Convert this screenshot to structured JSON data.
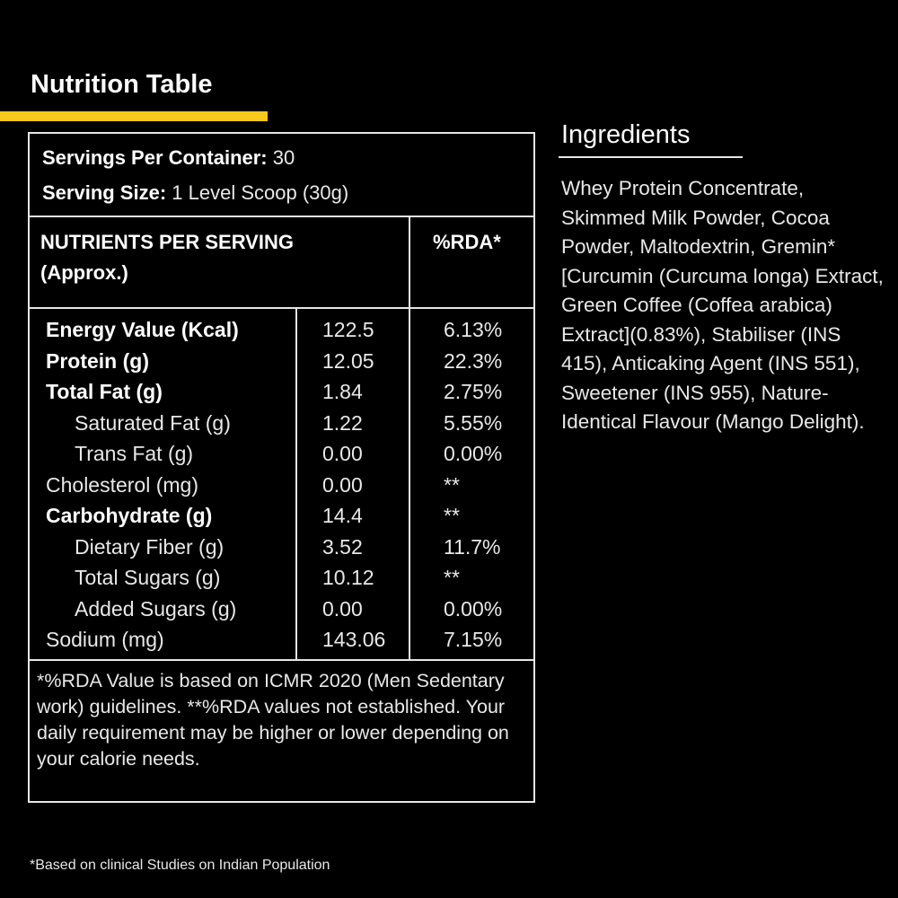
{
  "heading": "Nutrition Table",
  "colors": {
    "accent": "#f6c91c",
    "background": "#000000",
    "text": "#e8e8e8"
  },
  "servings": {
    "per_container_label": "Servings Per Container:",
    "per_container_value": "30",
    "size_label": "Serving Size:",
    "size_value": "1 Level Scoop (30g)"
  },
  "table": {
    "nutrients_header": "NUTRIENTS PER SERVING",
    "nutrients_subheader": "(Approx.)",
    "rda_header": "%RDA*",
    "rows": [
      {
        "name": "Energy Value (Kcal)",
        "amount": "122.5",
        "rda": "6.13%",
        "style": "bold"
      },
      {
        "name": "Protein (g)",
        "amount": "12.05",
        "rda": "22.3%",
        "style": "bold"
      },
      {
        "name": "Total Fat (g)",
        "amount": "1.84",
        "rda": "2.75%",
        "style": "bold"
      },
      {
        "name": "Saturated Fat (g)",
        "amount": "1.22",
        "rda": "5.55%",
        "style": "indent"
      },
      {
        "name": "Trans Fat (g)",
        "amount": "0.00",
        "rda": "0.00%",
        "style": "indent"
      },
      {
        "name": "Cholesterol (mg)",
        "amount": "0.00",
        "rda": "**",
        "style": "normal"
      },
      {
        "name": "Carbohydrate (g)",
        "amount": "14.4",
        "rda": "**",
        "style": "bold"
      },
      {
        "name": "Dietary Fiber (g)",
        "amount": "3.52",
        "rda": "11.7%",
        "style": "indent"
      },
      {
        "name": "Total Sugars (g)",
        "amount": "10.12",
        "rda": "**",
        "style": "indent"
      },
      {
        "name": "Added Sugars (g)",
        "amount": "0.00",
        "rda": "0.00%",
        "style": "indent"
      },
      {
        "name": "Sodium (mg)",
        "amount": "143.06",
        "rda": "7.15%",
        "style": "normal"
      }
    ],
    "footnote": "*%RDA Value is based on ICMR 2020 (Men Sedentary work) guidelines. **%RDA values not established. Your daily requirement may be higher or lower depending on your calorie needs."
  },
  "ingredients": {
    "title": "Ingredients",
    "text": "Whey Protein Concentrate, Skimmed Milk Powder, Cocoa Powder, Maltodextrin, Gremin* [Curcumin (Curcuma longa) Extract, Green Coffee (Coffea arabica) Extract](0.83%), Stabiliser (INS 415), Anticaking Agent (INS 551), Sweetener (INS 955), Nature-Identical Flavour (Mango Delight)."
  },
  "bottom_note": "*Based on clinical Studies on Indian Population"
}
